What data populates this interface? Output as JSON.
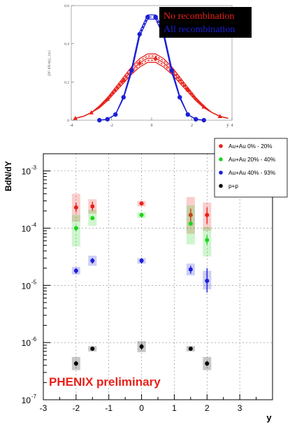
{
  "chart_data": [
    {
      "type": "line",
      "xlabel": "y",
      "ylabel": "[N² dN/dy]_{rs}",
      "xlim": [
        -4,
        4
      ],
      "ylim": [
        0,
        0.6
      ],
      "x_ticks": [
        "-4",
        "-2",
        "0",
        "2",
        "4"
      ],
      "y_ticks": [
        "0",
        "0.2",
        "0.4",
        "0.6"
      ],
      "legend": {
        "placement": "top-right",
        "background": "#000000"
      },
      "series": [
        {
          "name": "No recombination",
          "color": "#e8201a",
          "x": [
            -3.8,
            -3.4,
            -3.0,
            -2.6,
            -2.2,
            -1.8,
            -1.4,
            -1.0,
            -0.6,
            -0.2,
            0.2,
            0.6,
            1.0,
            1.4,
            1.8,
            2.2,
            2.6,
            3.0,
            3.4,
            3.8
          ],
          "y": [
            0.01,
            0.02,
            0.04,
            0.07,
            0.11,
            0.16,
            0.21,
            0.26,
            0.3,
            0.325,
            0.325,
            0.3,
            0.26,
            0.21,
            0.16,
            0.11,
            0.07,
            0.04,
            0.02,
            0.01
          ]
        },
        {
          "name": "All recombination",
          "color": "#1b1fd6",
          "x": [
            -2.6,
            -2.2,
            -1.8,
            -1.4,
            -1.0,
            -0.6,
            -0.2,
            0.2,
            0.6,
            1.0,
            1.4,
            1.8,
            2.2,
            2.6
          ],
          "y": [
            0.0,
            0.005,
            0.03,
            0.12,
            0.26,
            0.45,
            0.54,
            0.54,
            0.45,
            0.26,
            0.12,
            0.03,
            0.005,
            0.0
          ]
        }
      ]
    },
    {
      "type": "scatter",
      "xlabel": "y",
      "ylabel": "BdN/dY",
      "xlim": [
        -3,
        4
      ],
      "ylim": [
        1e-07,
        0.002
      ],
      "yscale": "log",
      "grid": true,
      "x_ticks": [
        "-3",
        "-2",
        "-1",
        "0",
        "1",
        "2",
        "3"
      ],
      "y_ticks": [
        {
          "value": 1e-07,
          "base": "10",
          "exp": "-7"
        },
        {
          "value": 1e-06,
          "base": "10",
          "exp": "-6"
        },
        {
          "value": 1e-05,
          "base": "10",
          "exp": "-5"
        },
        {
          "value": 0.0001,
          "base": "10",
          "exp": "-4"
        },
        {
          "value": 0.001,
          "base": "10",
          "exp": "-3"
        }
      ],
      "legend": {
        "placement": "top-right"
      },
      "annotation": "PHENIX preliminary",
      "annotation_color": "#e8201a",
      "series": [
        {
          "name": "Au+Au 0% - 20%",
          "color": "#e8201a",
          "x": [
            -2.0,
            -1.5,
            0.0,
            1.5,
            2.0
          ],
          "y": [
            0.00023,
            0.00024,
            0.00027,
            0.00017,
            0.00017
          ],
          "y_err": [
            [
              0.00019,
              0.00028
            ],
            [
              0.0002,
              0.00029
            ],
            [
              0.00025,
              0.00029
            ],
            [
              0.00013,
              0.00022
            ],
            [
              0.00012,
              0.00023
            ]
          ],
          "sys": [
            [
              0.00013,
              0.0004
            ],
            [
              0.00018,
              0.00032
            ],
            [
              0.00024,
              0.0003
            ],
            [
              8e-05,
              0.00035
            ],
            [
              9e-05,
              0.00028
            ]
          ]
        },
        {
          "name": "Au+Au 20% - 40%",
          "color": "#1fd41f",
          "x": [
            -2.0,
            -1.5,
            0.0,
            1.5,
            2.0
          ],
          "y": [
            0.0001,
            0.00015,
            0.00017,
            0.00012,
            6.2e-05
          ],
          "y_err": [
            [
              9e-05,
              0.00011
            ],
            [
              0.00014,
              0.00016
            ],
            [
              0.00016,
              0.00018
            ],
            [
              0.00011,
              0.00013
            ],
            [
              5.2e-05,
              7.5e-05
            ]
          ],
          "sys": [
            [
              4.8e-05,
              0.00017
            ],
            [
              0.00011,
              0.00021
            ],
            [
              0.00015,
              0.00019
            ],
            [
              5.2e-05,
              0.00025
            ],
            [
              3.2e-05,
              0.000105
            ]
          ]
        },
        {
          "name": "Au+Au 40% - 93%",
          "color": "#1b1fd6",
          "x": [
            -2.0,
            -1.5,
            0.0,
            1.5,
            2.0
          ],
          "y": [
            1.8e-05,
            2.7e-05,
            2.7e-05,
            1.9e-05,
            1.2e-05
          ],
          "y_err": [
            [
              1.6e-05,
              2e-05
            ],
            [
              2.4e-05,
              3e-05
            ],
            [
              2.4e-05,
              3e-05
            ],
            [
              1.6e-05,
              2.2e-05
            ],
            [
              7.5e-06,
              2e-05
            ]
          ],
          "sys": [
            [
              1.55e-05,
              2.1e-05
            ],
            [
              2.2e-05,
              3.3e-05
            ],
            [
              2.4e-05,
              3e-05
            ],
            [
              1.5e-05,
              2.4e-05
            ],
            [
              8.5e-06,
              1.8e-05
            ]
          ]
        },
        {
          "name": "p+p",
          "color": "#000000",
          "x": [
            -2.0,
            -1.5,
            0.0,
            1.5,
            2.0
          ],
          "y": [
            4.3e-07,
            7.8e-07,
            8.5e-07,
            7.8e-07,
            4.3e-07
          ],
          "y_err": [
            [
              3.9e-07,
              4.7e-07
            ],
            [
              7.4e-07,
              8.2e-07
            ],
            [
              7.6e-07,
              9.4e-07
            ],
            [
              7.4e-07,
              8.2e-07
            ],
            [
              3.9e-07,
              4.7e-07
            ]
          ],
          "sys": [
            [
              3.3e-07,
              5.6e-07
            ],
            [
              7e-07,
              8.7e-07
            ],
            [
              6.8e-07,
              1.06e-06
            ],
            [
              7e-07,
              8.7e-07
            ],
            [
              3.3e-07,
              5.6e-07
            ]
          ]
        }
      ]
    }
  ]
}
